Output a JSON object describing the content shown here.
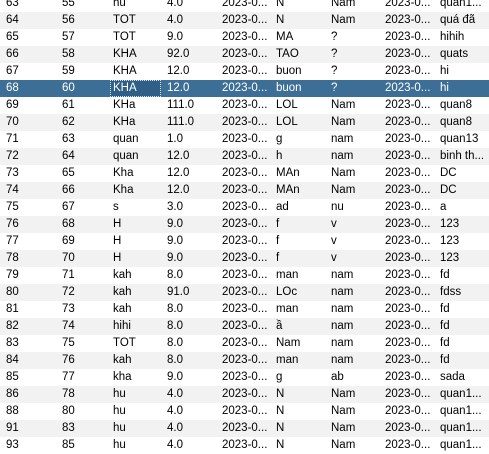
{
  "table": {
    "rows": [
      {
        "cells": [
          "63",
          "55",
          "hu",
          "4.0",
          "2023-0...",
          "N",
          "Nam",
          "2023-0...",
          "quan1..."
        ]
      },
      {
        "cells": [
          "64",
          "56",
          "TOT",
          "4.0",
          "2023-0...",
          "N",
          "Nam",
          "2023-0...",
          "quá đã"
        ]
      },
      {
        "cells": [
          "65",
          "57",
          "TOT",
          "9.0",
          "2023-0...",
          "MA",
          "?",
          "2023-0...",
          "hihih"
        ]
      },
      {
        "cells": [
          "66",
          "58",
          "KHA",
          "92.0",
          "2023-0...",
          "TAO",
          "?",
          "2023-0...",
          "quats"
        ]
      },
      {
        "cells": [
          "67",
          "59",
          "KHA",
          "12.0",
          "2023-0...",
          "buon",
          "?",
          "2023-0...",
          "hi"
        ]
      },
      {
        "cells": [
          "68",
          "60",
          "KHA",
          "12.0",
          "2023-0...",
          "buon",
          "?",
          "2023-0...",
          "hi"
        ],
        "selected": true
      },
      {
        "cells": [
          "69",
          "61",
          "KHa",
          "111.0",
          "2023-0...",
          "LOL",
          "Nam",
          "2023-0...",
          "quan8"
        ]
      },
      {
        "cells": [
          "70",
          "62",
          "KHa",
          "111.0",
          "2023-0...",
          "LOL",
          "Nam",
          "2023-0...",
          "quan8"
        ]
      },
      {
        "cells": [
          "71",
          "63",
          "quan",
          "1.0",
          "2023-0...",
          "g",
          "nam",
          "2023-0...",
          "quan13"
        ]
      },
      {
        "cells": [
          "72",
          "64",
          "quan",
          "12.0",
          "2023-0...",
          "h",
          "nam",
          "2023-0...",
          "binh th..."
        ]
      },
      {
        "cells": [
          "73",
          "65",
          "Kha",
          "12.0",
          "2023-0...",
          "MAn",
          "Nam",
          "2023-0...",
          "DC"
        ]
      },
      {
        "cells": [
          "74",
          "66",
          "Kha",
          "12.0",
          "2023-0...",
          "MAn",
          "Nam",
          "2023-0...",
          "DC"
        ]
      },
      {
        "cells": [
          "75",
          "67",
          "s",
          "3.0",
          "2023-0...",
          "ad",
          "nu",
          "2023-0...",
          "a"
        ]
      },
      {
        "cells": [
          "76",
          "68",
          "H",
          "9.0",
          "2023-0...",
          "f",
          "v",
          "2023-0...",
          "123"
        ]
      },
      {
        "cells": [
          "77",
          "69",
          "H",
          "9.0",
          "2023-0...",
          "f",
          "v",
          "2023-0...",
          "123"
        ]
      },
      {
        "cells": [
          "78",
          "70",
          "H",
          "9.0",
          "2023-0...",
          "f",
          "v",
          "2023-0...",
          "123"
        ]
      },
      {
        "cells": [
          "79",
          "71",
          "kah",
          "8.0",
          "2023-0...",
          "man",
          "nam",
          "2023-0...",
          "fd"
        ]
      },
      {
        "cells": [
          "80",
          "72",
          "kah",
          "91.0",
          "2023-0...",
          "LOc",
          "nam",
          "2023-0...",
          "fdss"
        ]
      },
      {
        "cells": [
          "81",
          "73",
          "kah",
          "8.0",
          "2023-0...",
          "man",
          "nam",
          "2023-0...",
          "fd"
        ]
      },
      {
        "cells": [
          "82",
          "74",
          "hihi",
          "8.0",
          "2023-0...",
          "ầ",
          "nam",
          "2023-0...",
          "fd"
        ]
      },
      {
        "cells": [
          "83",
          "75",
          "TOT",
          "8.0",
          "2023-0...",
          "Nam",
          "nam",
          "2023-0...",
          "fd"
        ]
      },
      {
        "cells": [
          "84",
          "76",
          "kah",
          "8.0",
          "2023-0...",
          "man",
          "nam",
          "2023-0...",
          "fd"
        ]
      },
      {
        "cells": [
          "85",
          "77",
          "kha",
          "9.0",
          "2023-0...",
          "g",
          "ab",
          "2023-0...",
          "sada"
        ]
      },
      {
        "cells": [
          "86",
          "78",
          "hu",
          "4.0",
          "2023-0...",
          "N",
          "Nam",
          "2023-0...",
          "quan1..."
        ]
      },
      {
        "cells": [
          "88",
          "80",
          "hu",
          "4.0",
          "2023-0...",
          "N",
          "Nam",
          "2023-0...",
          "quan1..."
        ]
      },
      {
        "cells": [
          "91",
          "83",
          "hu",
          "4.0",
          "2023-0...",
          "N",
          "Nam",
          "2023-0...",
          "quan1..."
        ]
      },
      {
        "cells": [
          "93",
          "85",
          "hu",
          "4.0",
          "2023-0...",
          "N",
          "Nam",
          "2023-0...",
          "quan1..."
        ]
      }
    ]
  }
}
